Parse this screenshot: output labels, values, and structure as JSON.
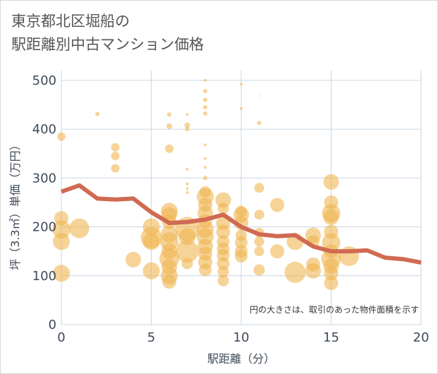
{
  "title": {
    "line1": "東京都北区堀船の",
    "line2": "駅距離別中古マンション価格"
  },
  "chart_data": {
    "type": "scatter",
    "xlabel": "駅距離（分）",
    "ylabel": "坪（3.3㎡）単価（万円）",
    "xlim": [
      0,
      20
    ],
    "ylim": [
      0,
      520
    ],
    "x_ticks": [
      "0",
      "5",
      "10",
      "15",
      "20"
    ],
    "y_ticks": [
      "0",
      "100",
      "200",
      "300",
      "400",
      "500"
    ],
    "x_tick_values": [
      0,
      5,
      10,
      15,
      20
    ],
    "y_tick_values": [
      0,
      100,
      200,
      300,
      400,
      500
    ],
    "grid": true,
    "note": "円の大きさは、取引のあった物件面積を示す",
    "colors": {
      "points": "#f0b552",
      "line": "#d06a52",
      "grid": "#c9d6e3"
    },
    "points": [
      {
        "x": 0,
        "y": 385,
        "s": 6
      },
      {
        "x": 0,
        "y": 218,
        "s": 10
      },
      {
        "x": 0,
        "y": 195,
        "s": 13
      },
      {
        "x": 0,
        "y": 170,
        "s": 12
      },
      {
        "x": 0,
        "y": 105,
        "s": 12
      },
      {
        "x": 1,
        "y": 197,
        "s": 14
      },
      {
        "x": 2,
        "y": 431,
        "s": 3
      },
      {
        "x": 3,
        "y": 363,
        "s": 6
      },
      {
        "x": 3,
        "y": 345,
        "s": 6
      },
      {
        "x": 3,
        "y": 320,
        "s": 6
      },
      {
        "x": 4,
        "y": 133,
        "s": 11
      },
      {
        "x": 5,
        "y": 200,
        "s": 12
      },
      {
        "x": 5,
        "y": 178,
        "s": 15
      },
      {
        "x": 5,
        "y": 170,
        "s": 12
      },
      {
        "x": 5,
        "y": 110,
        "s": 12
      },
      {
        "x": 6,
        "y": 430,
        "s": 3
      },
      {
        "x": 6,
        "y": 406,
        "s": 4
      },
      {
        "x": 6,
        "y": 360,
        "s": 6
      },
      {
        "x": 6,
        "y": 232,
        "s": 12
      },
      {
        "x": 6,
        "y": 225,
        "s": 11
      },
      {
        "x": 6,
        "y": 210,
        "s": 10
      },
      {
        "x": 6,
        "y": 185,
        "s": 12
      },
      {
        "x": 6,
        "y": 170,
        "s": 13
      },
      {
        "x": 6,
        "y": 150,
        "s": 11
      },
      {
        "x": 6,
        "y": 135,
        "s": 14
      },
      {
        "x": 6,
        "y": 118,
        "s": 11
      },
      {
        "x": 6,
        "y": 100,
        "s": 12
      },
      {
        "x": 6,
        "y": 88,
        "s": 10
      },
      {
        "x": 7,
        "y": 430,
        "s": 2
      },
      {
        "x": 7,
        "y": 408,
        "s": 4
      },
      {
        "x": 7,
        "y": 400,
        "s": 3
      },
      {
        "x": 7,
        "y": 318,
        "s": 2
      },
      {
        "x": 7,
        "y": 288,
        "s": 2
      },
      {
        "x": 7,
        "y": 278,
        "s": 2
      },
      {
        "x": 7,
        "y": 270,
        "s": 2
      },
      {
        "x": 7,
        "y": 196,
        "s": 17
      },
      {
        "x": 7,
        "y": 180,
        "s": 12
      },
      {
        "x": 7,
        "y": 150,
        "s": 16
      },
      {
        "x": 7,
        "y": 125,
        "s": 8
      },
      {
        "x": 8,
        "y": 500,
        "s": 2
      },
      {
        "x": 8,
        "y": 478,
        "s": 3
      },
      {
        "x": 8,
        "y": 460,
        "s": 3
      },
      {
        "x": 8,
        "y": 445,
        "s": 3
      },
      {
        "x": 8,
        "y": 432,
        "s": 3
      },
      {
        "x": 8,
        "y": 368,
        "s": 2
      },
      {
        "x": 8,
        "y": 340,
        "s": 2
      },
      {
        "x": 8,
        "y": 322,
        "s": 2
      },
      {
        "x": 8,
        "y": 300,
        "s": 3
      },
      {
        "x": 8,
        "y": 272,
        "s": 8
      },
      {
        "x": 8,
        "y": 262,
        "s": 12
      },
      {
        "x": 8,
        "y": 245,
        "s": 10
      },
      {
        "x": 8,
        "y": 228,
        "s": 11
      },
      {
        "x": 8,
        "y": 212,
        "s": 10
      },
      {
        "x": 8,
        "y": 195,
        "s": 12
      },
      {
        "x": 8,
        "y": 180,
        "s": 12
      },
      {
        "x": 8,
        "y": 160,
        "s": 11
      },
      {
        "x": 8,
        "y": 145,
        "s": 10
      },
      {
        "x": 8,
        "y": 128,
        "s": 10
      },
      {
        "x": 8,
        "y": 112,
        "s": 9
      },
      {
        "x": 9,
        "y": 255,
        "s": 11
      },
      {
        "x": 9,
        "y": 238,
        "s": 8
      },
      {
        "x": 9,
        "y": 208,
        "s": 10
      },
      {
        "x": 9,
        "y": 190,
        "s": 10
      },
      {
        "x": 9,
        "y": 170,
        "s": 9
      },
      {
        "x": 9,
        "y": 155,
        "s": 9
      },
      {
        "x": 9,
        "y": 142,
        "s": 9
      },
      {
        "x": 9,
        "y": 125,
        "s": 9
      },
      {
        "x": 9,
        "y": 108,
        "s": 8
      },
      {
        "x": 9,
        "y": 90,
        "s": 8
      },
      {
        "x": 10,
        "y": 492,
        "s": 2
      },
      {
        "x": 10,
        "y": 442,
        "s": 2
      },
      {
        "x": 10,
        "y": 232,
        "s": 8
      },
      {
        "x": 10,
        "y": 225,
        "s": 11
      },
      {
        "x": 10,
        "y": 208,
        "s": 10
      },
      {
        "x": 10,
        "y": 183,
        "s": 8
      },
      {
        "x": 10,
        "y": 168,
        "s": 9
      },
      {
        "x": 10,
        "y": 150,
        "s": 9
      },
      {
        "x": 10,
        "y": 140,
        "s": 9
      },
      {
        "x": 11,
        "y": 468,
        "s": 1
      },
      {
        "x": 11,
        "y": 413,
        "s": 3
      },
      {
        "x": 11,
        "y": 280,
        "s": 7
      },
      {
        "x": 11,
        "y": 225,
        "s": 7
      },
      {
        "x": 11,
        "y": 188,
        "s": 7
      },
      {
        "x": 11,
        "y": 170,
        "s": 7
      },
      {
        "x": 11,
        "y": 150,
        "s": 7
      },
      {
        "x": 11,
        "y": 112,
        "s": 8
      },
      {
        "x": 12,
        "y": 245,
        "s": 10
      },
      {
        "x": 12,
        "y": 150,
        "s": 10
      },
      {
        "x": 13,
        "y": 170,
        "s": 12
      },
      {
        "x": 13,
        "y": 107,
        "s": 15
      },
      {
        "x": 14,
        "y": 183,
        "s": 11
      },
      {
        "x": 14,
        "y": 170,
        "s": 9
      },
      {
        "x": 14,
        "y": 123,
        "s": 10
      },
      {
        "x": 14,
        "y": 110,
        "s": 11
      },
      {
        "x": 15,
        "y": 292,
        "s": 11
      },
      {
        "x": 15,
        "y": 250,
        "s": 10
      },
      {
        "x": 15,
        "y": 228,
        "s": 13
      },
      {
        "x": 15,
        "y": 220,
        "s": 11
      },
      {
        "x": 15,
        "y": 190,
        "s": 10
      },
      {
        "x": 15,
        "y": 168,
        "s": 13
      },
      {
        "x": 15,
        "y": 150,
        "s": 10
      },
      {
        "x": 15,
        "y": 135,
        "s": 14
      },
      {
        "x": 15,
        "y": 120,
        "s": 11
      },
      {
        "x": 15,
        "y": 105,
        "s": 10
      },
      {
        "x": 15,
        "y": 85,
        "s": 10
      },
      {
        "x": 16,
        "y": 140,
        "s": 14
      }
    ],
    "trend": [
      {
        "x": 0,
        "y": 272
      },
      {
        "x": 1,
        "y": 285
      },
      {
        "x": 2,
        "y": 258
      },
      {
        "x": 3,
        "y": 256
      },
      {
        "x": 4,
        "y": 258
      },
      {
        "x": 5,
        "y": 230
      },
      {
        "x": 6,
        "y": 208
      },
      {
        "x": 7,
        "y": 210
      },
      {
        "x": 8,
        "y": 215
      },
      {
        "x": 9,
        "y": 225
      },
      {
        "x": 10,
        "y": 200
      },
      {
        "x": 11,
        "y": 185
      },
      {
        "x": 12,
        "y": 181
      },
      {
        "x": 13,
        "y": 183
      },
      {
        "x": 14,
        "y": 160
      },
      {
        "x": 15,
        "y": 150
      },
      {
        "x": 16,
        "y": 150
      },
      {
        "x": 17,
        "y": 152
      },
      {
        "x": 18,
        "y": 137
      },
      {
        "x": 19,
        "y": 134
      },
      {
        "x": 20,
        "y": 127
      }
    ]
  }
}
